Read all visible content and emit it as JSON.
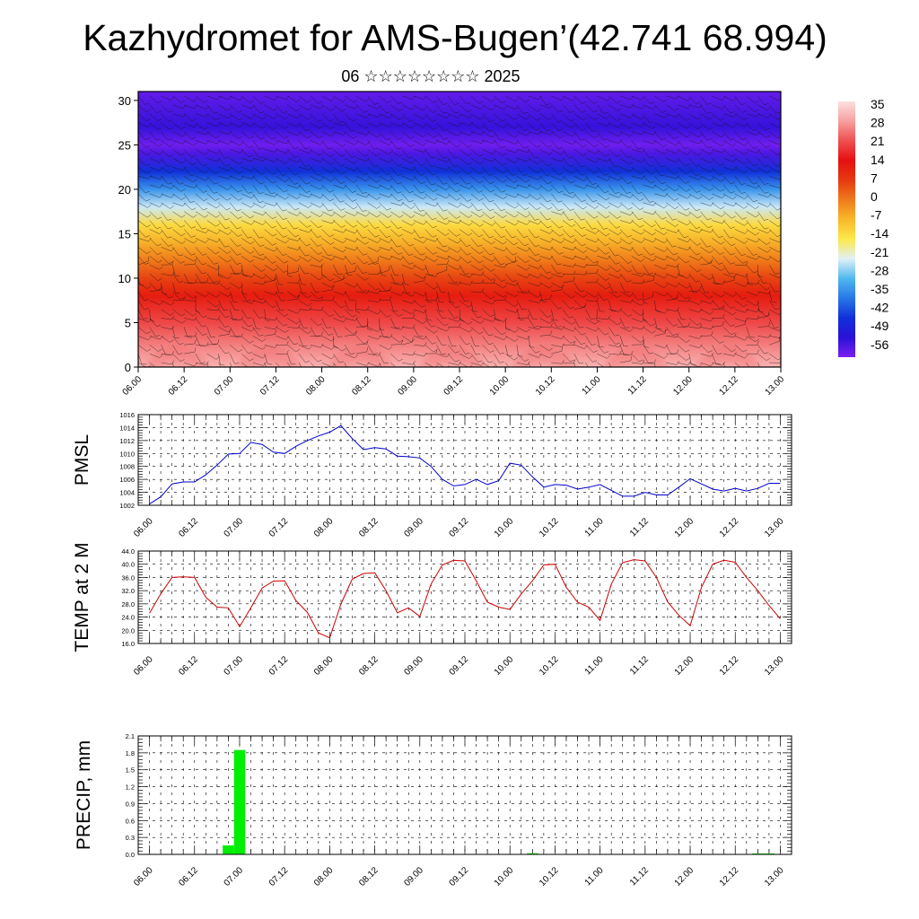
{
  "header": {
    "title": "Kazhydromet for AMS-Bugen’(42.741 68.994)",
    "subtitle": "06 ☆☆☆☆☆☆☆☆ 2025"
  },
  "chart_data": [
    {
      "type": "heatmap",
      "name": "temperature cross-section with wind barbs",
      "x_tick_labels": [
        "06.00",
        "06.12",
        "07.00",
        "07.12",
        "08.00",
        "08.12",
        "09.00",
        "09.12",
        "10.00",
        "10.12",
        "11.00",
        "11.12",
        "12.00",
        "12.12",
        "13.00"
      ],
      "xlim": [
        0,
        168
      ],
      "ylim": [
        0,
        31
      ],
      "y_ticks": [
        0,
        5,
        10,
        15,
        20,
        25,
        30
      ],
      "colorbar": {
        "labels": [
          "35",
          "28",
          "21",
          "14",
          "7",
          "0",
          "-7",
          "-14",
          "-21",
          "-28",
          "-35",
          "-42",
          "-49",
          "-56"
        ],
        "colors": [
          "#fde0e0",
          "#f7a0a0",
          "#ef5050",
          "#e61010",
          "#e63a10",
          "#f07a1a",
          "#f8b82a",
          "#fde84a",
          "#e0f0f8",
          "#50b8ee",
          "#2878e8",
          "#1030d8",
          "#2a10d8",
          "#7a20f0"
        ]
      },
      "profile_by_height": [
        {
          "h": 0,
          "t": 30
        },
        {
          "h": 2,
          "t": 26
        },
        {
          "h": 5,
          "t": 20
        },
        {
          "h": 8,
          "t": 12
        },
        {
          "h": 10,
          "t": 6
        },
        {
          "h": 12,
          "t": 0
        },
        {
          "h": 14,
          "t": -6
        },
        {
          "h": 16,
          "t": -12
        },
        {
          "h": 18,
          "t": -22
        },
        {
          "h": 20,
          "t": -32
        },
        {
          "h": 22,
          "t": -42
        },
        {
          "h": 24,
          "t": -52
        },
        {
          "h": 25,
          "t": -55
        },
        {
          "h": 27,
          "t": -50
        },
        {
          "h": 29,
          "t": -52
        },
        {
          "h": 31,
          "t": -54
        }
      ],
      "grid": false
    },
    {
      "type": "line",
      "ylabel": "PMSL",
      "x_tick_labels": [
        "06.00",
        "06.12",
        "07.00",
        "07.12",
        "08.00",
        "08.12",
        "09.00",
        "09.12",
        "10.00",
        "10.12",
        "11.00",
        "11.12",
        "12.00",
        "12.12",
        "13.00"
      ],
      "xlim": [
        -3,
        171
      ],
      "ylim": [
        1002,
        1016
      ],
      "y_tick_labels": [
        "1002",
        "1004",
        "1006",
        "1008",
        "1010",
        "1012",
        "1014",
        "1016"
      ],
      "grid": true,
      "color": "#0000cc",
      "series": [
        {
          "x": [
            0,
            3,
            6,
            9,
            12,
            15,
            18,
            21,
            24,
            27,
            30,
            33,
            36,
            39,
            42,
            45,
            48,
            51,
            54,
            57,
            60,
            63,
            66,
            69,
            72,
            75,
            78,
            81,
            84,
            87,
            90,
            93,
            96,
            99,
            102,
            105,
            108,
            111,
            114,
            117,
            120,
            123,
            126,
            129,
            132,
            135,
            138,
            141,
            144,
            147,
            150,
            153,
            156,
            159,
            162,
            165,
            168
          ],
          "values": [
            1002.2,
            1003.3,
            1005.3,
            1005.6,
            1005.6,
            1006.7,
            1008.2,
            1009.9,
            1010.0,
            1011.7,
            1011.4,
            1010.2,
            1010.0,
            1011.1,
            1012.0,
            1012.7,
            1013.3,
            1014.3,
            1012.3,
            1010.6,
            1010.9,
            1010.7,
            1009.6,
            1009.5,
            1009.3,
            1008.0,
            1006.0,
            1005.0,
            1005.2,
            1006.0,
            1005.2,
            1005.8,
            1008.5,
            1008.2,
            1006.4,
            1004.8,
            1005.2,
            1005.1,
            1004.5,
            1004.8,
            1005.2,
            1004.3,
            1003.4,
            1003.4,
            1004.0,
            1003.6,
            1003.6,
            1004.8,
            1006.1,
            1005.3,
            1004.5,
            1004.2,
            1004.6,
            1004.2,
            1004.6,
            1005.4,
            1005.4
          ]
        }
      ]
    },
    {
      "type": "line",
      "ylabel": "TEMP at 2 M",
      "x_tick_labels": [
        "06.00",
        "06.12",
        "07.00",
        "07.12",
        "08.00",
        "08.12",
        "09.00",
        "09.12",
        "10.00",
        "10.12",
        "11.00",
        "11.12",
        "12.00",
        "12.12",
        "13.00"
      ],
      "xlim": [
        -3,
        171
      ],
      "ylim": [
        16,
        44
      ],
      "y_tick_labels": [
        "16.0",
        "20.0",
        "24.0",
        "28.0",
        "32.0",
        "36.0",
        "40.0",
        "44.0"
      ],
      "grid": true,
      "color": "#cc0000",
      "series": [
        {
          "x": [
            0,
            3,
            6,
            9,
            12,
            15,
            18,
            21,
            24,
            27,
            30,
            33,
            36,
            39,
            42,
            45,
            48,
            51,
            54,
            57,
            60,
            63,
            66,
            69,
            72,
            75,
            78,
            81,
            84,
            87,
            90,
            93,
            96,
            99,
            102,
            105,
            108,
            111,
            114,
            117,
            120,
            123,
            126,
            129,
            132,
            135,
            138,
            141,
            144,
            147,
            150,
            153,
            156,
            159,
            162,
            165,
            168
          ],
          "values": [
            25.2,
            31.0,
            36.0,
            36.2,
            36.0,
            30.0,
            27.0,
            26.8,
            21.1,
            26.8,
            32.8,
            34.9,
            35.0,
            29.0,
            25.5,
            19.2,
            17.7,
            28.0,
            35.5,
            37.2,
            37.4,
            32.0,
            25.3,
            26.8,
            24.2,
            34.0,
            39.8,
            41.2,
            41.0,
            35.0,
            28.5,
            27.0,
            26.3,
            31.0,
            35.0,
            39.8,
            40.0,
            33.0,
            28.5,
            27.0,
            23.0,
            34.0,
            40.5,
            41.4,
            41.0,
            36.0,
            28.6,
            24.5,
            21.4,
            33.0,
            40.0,
            41.2,
            40.6,
            36.0,
            32.0,
            27.5,
            23.5
          ]
        }
      ]
    },
    {
      "type": "bar",
      "ylabel": "PRECIP, mm",
      "x_tick_labels": [
        "06.00",
        "06.12",
        "07.00",
        "07.12",
        "08.00",
        "08.12",
        "09.00",
        "09.12",
        "10.00",
        "10.12",
        "11.00",
        "11.12",
        "12.00",
        "12.12",
        "13.00"
      ],
      "xlim": [
        -3,
        171
      ],
      "ylim": [
        0,
        2.1
      ],
      "y_tick_labels": [
        "0.0",
        "0.3",
        "0.6",
        "0.9",
        "1.2",
        "1.5",
        "1.8",
        "2.1"
      ],
      "grid": true,
      "color": "#00ee00",
      "bars": [
        {
          "x": 21,
          "value": 0.16
        },
        {
          "x": 24,
          "value": 1.85
        },
        {
          "x": 102,
          "value": 0.02
        },
        {
          "x": 162,
          "value": 0.01
        },
        {
          "x": 165,
          "value": 0.01
        }
      ]
    }
  ]
}
